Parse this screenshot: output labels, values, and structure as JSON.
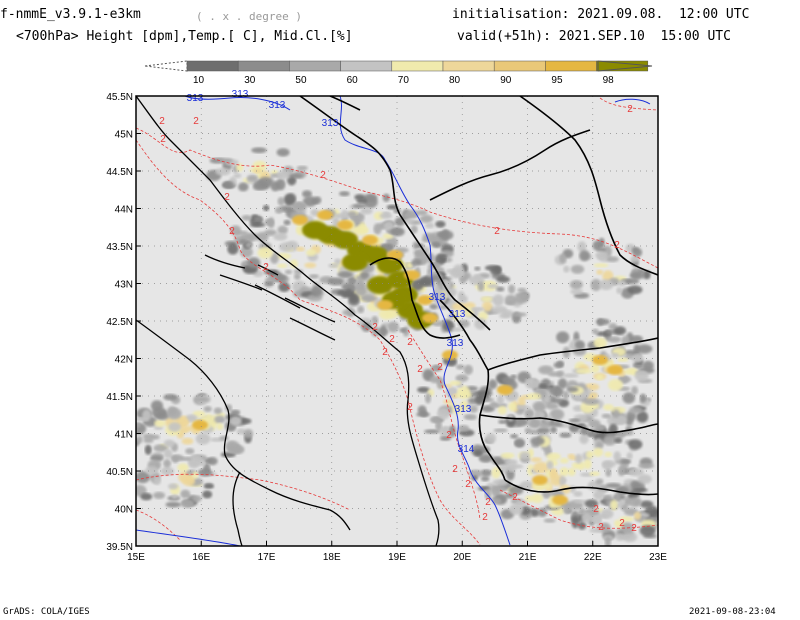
{
  "header": {
    "model": "f-nmmE_v3.9.1-e3km",
    "units_hint": "( . x . degree )",
    "fields": "<700hPa> Height [dpm],Temp.[ C], Mid.Cl.[%]",
    "init": "initialisation: 2021.09.08.  12:00 UTC",
    "valid": "valid(+51h): 2021.SEP.10  15:00 UTC"
  },
  "colorbar": {
    "ticks": [
      "10",
      "30",
      "50",
      "60",
      "70",
      "80",
      "90",
      "95",
      "98"
    ],
    "colors": [
      "#6e6e6e",
      "#8c8c8c",
      "#a9a9a9",
      "#c3c3c3",
      "#f0eaad",
      "#eed79a",
      "#e9c879",
      "#e5b742",
      "#8b8b00"
    ]
  },
  "map": {
    "lat_labels": [
      "45.5N",
      "45N",
      "44.5N",
      "44N",
      "43.5N",
      "43N",
      "42.5N",
      "42N",
      "41.5N",
      "41N",
      "40.5N",
      "40N",
      "39.5N"
    ],
    "lon_labels": [
      "15E",
      "16E",
      "17E",
      "18E",
      "19E",
      "20E",
      "21E",
      "22E",
      "23E"
    ],
    "contour_labels": {
      "height": [
        "313",
        "313",
        "313",
        "313",
        "313",
        "313",
        "313",
        "313",
        "314"
      ],
      "temp": [
        "2",
        "2",
        "2",
        "2",
        "2",
        "2",
        "2",
        "2",
        "2",
        "2",
        "2",
        "2",
        "2",
        "2",
        "2",
        "2",
        "2",
        "2",
        "2",
        "2",
        "2",
        "2",
        "2",
        "2",
        "2",
        "2",
        "2"
      ]
    },
    "colors": {
      "background": "#e6e6e6",
      "height_contour": "#1a2ed8",
      "temp_contour": "#e63a3a",
      "borders": "#000000"
    }
  },
  "footer": {
    "left": "GrADS: COLA/IGES",
    "right": "2021-09-08-23:04"
  }
}
